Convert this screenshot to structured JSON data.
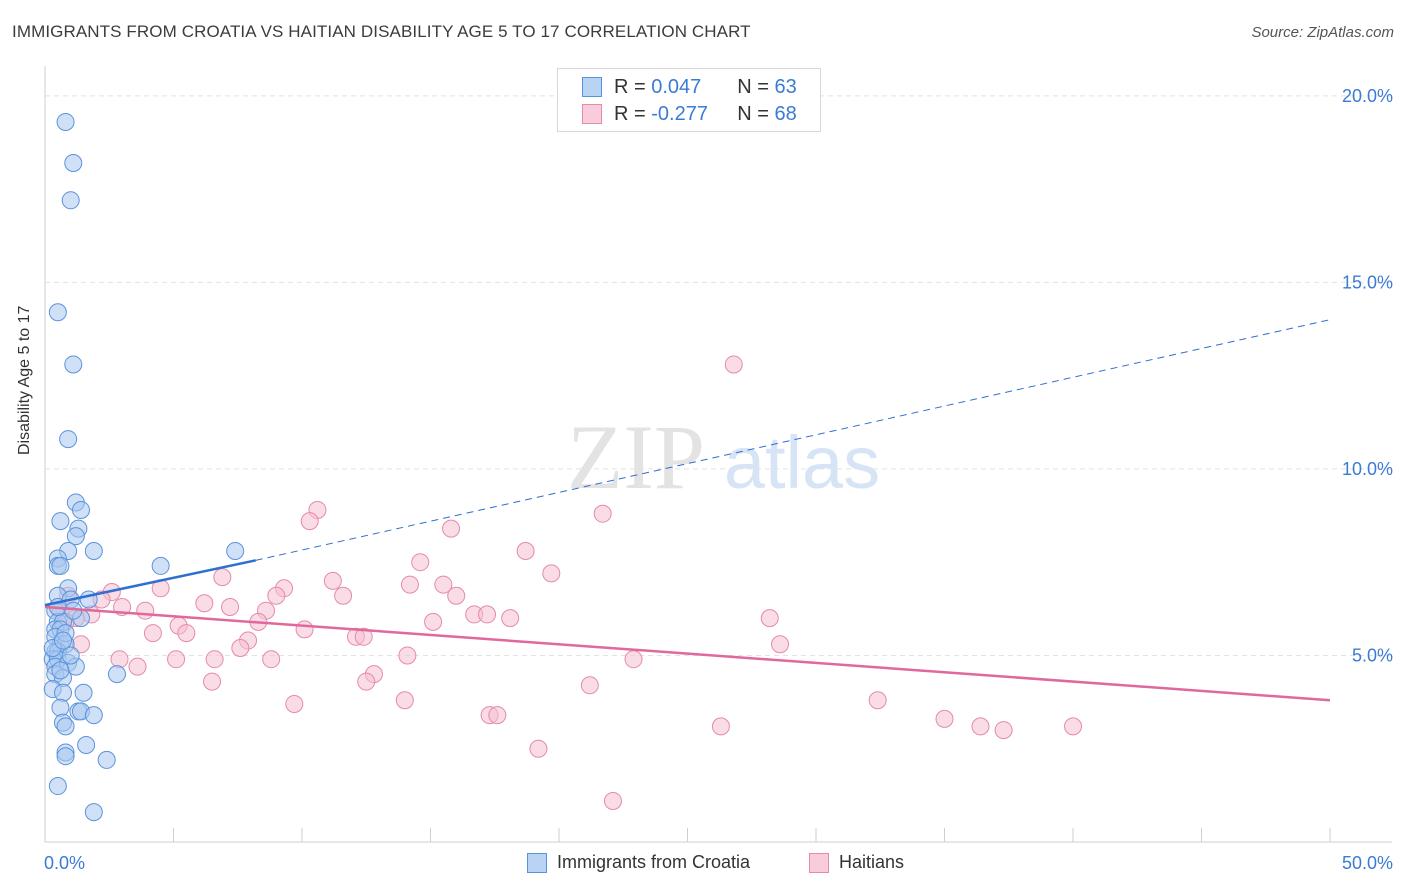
{
  "header": {
    "title": "IMMIGRANTS FROM CROATIA VS HAITIAN DISABILITY AGE 5 TO 17 CORRELATION CHART",
    "source": "Source: ZipAtlas.com"
  },
  "legend": {
    "croatia": {
      "r_label": "R =",
      "r_value": "0.047",
      "n_label": "N =",
      "n_value": "63"
    },
    "haitians": {
      "r_label": "R =",
      "r_value": "-0.277",
      "n_label": "N =",
      "n_value": "68"
    }
  },
  "watermark": {
    "zip": "ZIP",
    "atlas": "atlas"
  },
  "colors": {
    "croatia_fill": "#a9c8f0",
    "croatia_stroke": "#5a93dc",
    "croatia_line": "#2f6fcf",
    "haitians_fill": "#f6bfd1",
    "haitians_stroke": "#e58aab",
    "haitians_line": "#e0689a",
    "tick_label": "#3a7bd5",
    "grid": "#e2e2e2"
  },
  "chart_data": {
    "type": "scatter",
    "title": "IMMIGRANTS FROM CROATIA VS HAITIAN DISABILITY AGE 5 TO 17 CORRELATION CHART",
    "xlabel": "",
    "ylabel": "Disability Age 5 to 17",
    "xlim": [
      0,
      50
    ],
    "ylim": [
      0,
      20.8
    ],
    "x_tick_labels": [
      "0.0%",
      "50.0%"
    ],
    "y_ticks": [
      5,
      10,
      15,
      20
    ],
    "y_tick_labels": [
      "5.0%",
      "10.0%",
      "15.0%",
      "20.0%"
    ],
    "grid": "horizontal dashed",
    "legend_position": "top-center",
    "series": [
      {
        "name": "Immigrants from Croatia",
        "points": [
          [
            0.8,
            19.3
          ],
          [
            1.1,
            18.2
          ],
          [
            1.0,
            17.2
          ],
          [
            0.5,
            14.2
          ],
          [
            1.1,
            12.8
          ],
          [
            0.9,
            10.8
          ],
          [
            1.2,
            9.1
          ],
          [
            1.4,
            8.9
          ],
          [
            0.6,
            8.6
          ],
          [
            1.3,
            8.4
          ],
          [
            1.2,
            8.2
          ],
          [
            0.9,
            7.8
          ],
          [
            1.9,
            7.8
          ],
          [
            0.5,
            7.6
          ],
          [
            0.5,
            7.4
          ],
          [
            0.6,
            7.4
          ],
          [
            4.5,
            7.4
          ],
          [
            7.4,
            7.8
          ],
          [
            0.9,
            6.8
          ],
          [
            0.5,
            6.6
          ],
          [
            1.0,
            6.5
          ],
          [
            1.7,
            6.5
          ],
          [
            0.4,
            6.2
          ],
          [
            0.5,
            5.9
          ],
          [
            0.7,
            5.9
          ],
          [
            0.4,
            5.7
          ],
          [
            0.6,
            5.7
          ],
          [
            1.4,
            6.0
          ],
          [
            0.4,
            5.5
          ],
          [
            0.6,
            5.3
          ],
          [
            0.8,
            5.3
          ],
          [
            0.4,
            5.1
          ],
          [
            0.5,
            5.1
          ],
          [
            0.3,
            4.9
          ],
          [
            0.5,
            4.9
          ],
          [
            0.4,
            4.7
          ],
          [
            0.9,
            4.8
          ],
          [
            1.2,
            4.7
          ],
          [
            0.4,
            4.5
          ],
          [
            0.7,
            4.4
          ],
          [
            2.8,
            4.5
          ],
          [
            0.3,
            4.1
          ],
          [
            0.7,
            4.0
          ],
          [
            1.5,
            4.0
          ],
          [
            0.6,
            3.6
          ],
          [
            1.3,
            3.5
          ],
          [
            1.4,
            3.5
          ],
          [
            1.9,
            3.4
          ],
          [
            0.7,
            3.2
          ],
          [
            0.8,
            3.1
          ],
          [
            1.6,
            2.6
          ],
          [
            0.8,
            2.4
          ],
          [
            0.8,
            2.3
          ],
          [
            2.4,
            2.2
          ],
          [
            0.5,
            1.5
          ],
          [
            1.9,
            0.8
          ],
          [
            0.3,
            5.2
          ],
          [
            0.5,
            6.3
          ],
          [
            0.8,
            5.6
          ],
          [
            1.0,
            5.0
          ],
          [
            0.6,
            4.6
          ],
          [
            1.1,
            6.2
          ],
          [
            0.7,
            5.4
          ]
        ]
      },
      {
        "name": "Haitians",
        "points": [
          [
            26.8,
            12.8
          ],
          [
            10.6,
            8.9
          ],
          [
            10.3,
            8.6
          ],
          [
            21.7,
            8.8
          ],
          [
            15.8,
            8.4
          ],
          [
            18.7,
            7.8
          ],
          [
            14.6,
            7.5
          ],
          [
            19.7,
            7.2
          ],
          [
            6.9,
            7.1
          ],
          [
            11.2,
            7.0
          ],
          [
            14.2,
            6.9
          ],
          [
            15.5,
            6.9
          ],
          [
            4.5,
            6.8
          ],
          [
            9.3,
            6.8
          ],
          [
            2.6,
            6.7
          ],
          [
            9.0,
            6.6
          ],
          [
            11.6,
            6.6
          ],
          [
            16.0,
            6.6
          ],
          [
            2.2,
            6.5
          ],
          [
            6.2,
            6.4
          ],
          [
            3.0,
            6.3
          ],
          [
            7.2,
            6.3
          ],
          [
            8.6,
            6.2
          ],
          [
            3.9,
            6.2
          ],
          [
            16.7,
            6.1
          ],
          [
            17.2,
            6.1
          ],
          [
            18.1,
            6.0
          ],
          [
            28.2,
            6.0
          ],
          [
            8.3,
            5.9
          ],
          [
            15.1,
            5.9
          ],
          [
            0.6,
            6.2
          ],
          [
            1.8,
            6.1
          ],
          [
            5.2,
            5.8
          ],
          [
            10.1,
            5.7
          ],
          [
            4.2,
            5.6
          ],
          [
            5.5,
            5.6
          ],
          [
            12.1,
            5.5
          ],
          [
            12.4,
            5.5
          ],
          [
            7.9,
            5.4
          ],
          [
            1.4,
            5.3
          ],
          [
            7.6,
            5.2
          ],
          [
            28.6,
            5.3
          ],
          [
            14.1,
            5.0
          ],
          [
            2.9,
            4.9
          ],
          [
            5.1,
            4.9
          ],
          [
            6.6,
            4.9
          ],
          [
            8.8,
            4.9
          ],
          [
            22.9,
            4.9
          ],
          [
            3.6,
            4.7
          ],
          [
            12.8,
            4.5
          ],
          [
            6.5,
            4.3
          ],
          [
            12.5,
            4.3
          ],
          [
            21.2,
            4.2
          ],
          [
            14.0,
            3.8
          ],
          [
            9.7,
            3.7
          ],
          [
            32.4,
            3.8
          ],
          [
            17.3,
            3.4
          ],
          [
            17.6,
            3.4
          ],
          [
            26.3,
            3.1
          ],
          [
            35.0,
            3.3
          ],
          [
            36.4,
            3.1
          ],
          [
            37.3,
            3.0
          ],
          [
            40.0,
            3.1
          ],
          [
            19.2,
            2.5
          ],
          [
            22.1,
            1.1
          ],
          [
            0.9,
            6.6
          ],
          [
            1.2,
            6.0
          ],
          [
            0.8,
            5.9
          ]
        ]
      }
    ],
    "trend_lines": [
      {
        "series": "Immigrants from Croatia",
        "solid": [
          [
            0,
            6.35
          ],
          [
            8.2,
            7.55
          ]
        ],
        "dashed": [
          [
            8.2,
            7.55
          ],
          [
            50,
            14.0
          ]
        ]
      },
      {
        "series": "Haitians",
        "solid": [
          [
            0,
            6.3
          ],
          [
            50,
            3.8
          ]
        ]
      }
    ]
  }
}
